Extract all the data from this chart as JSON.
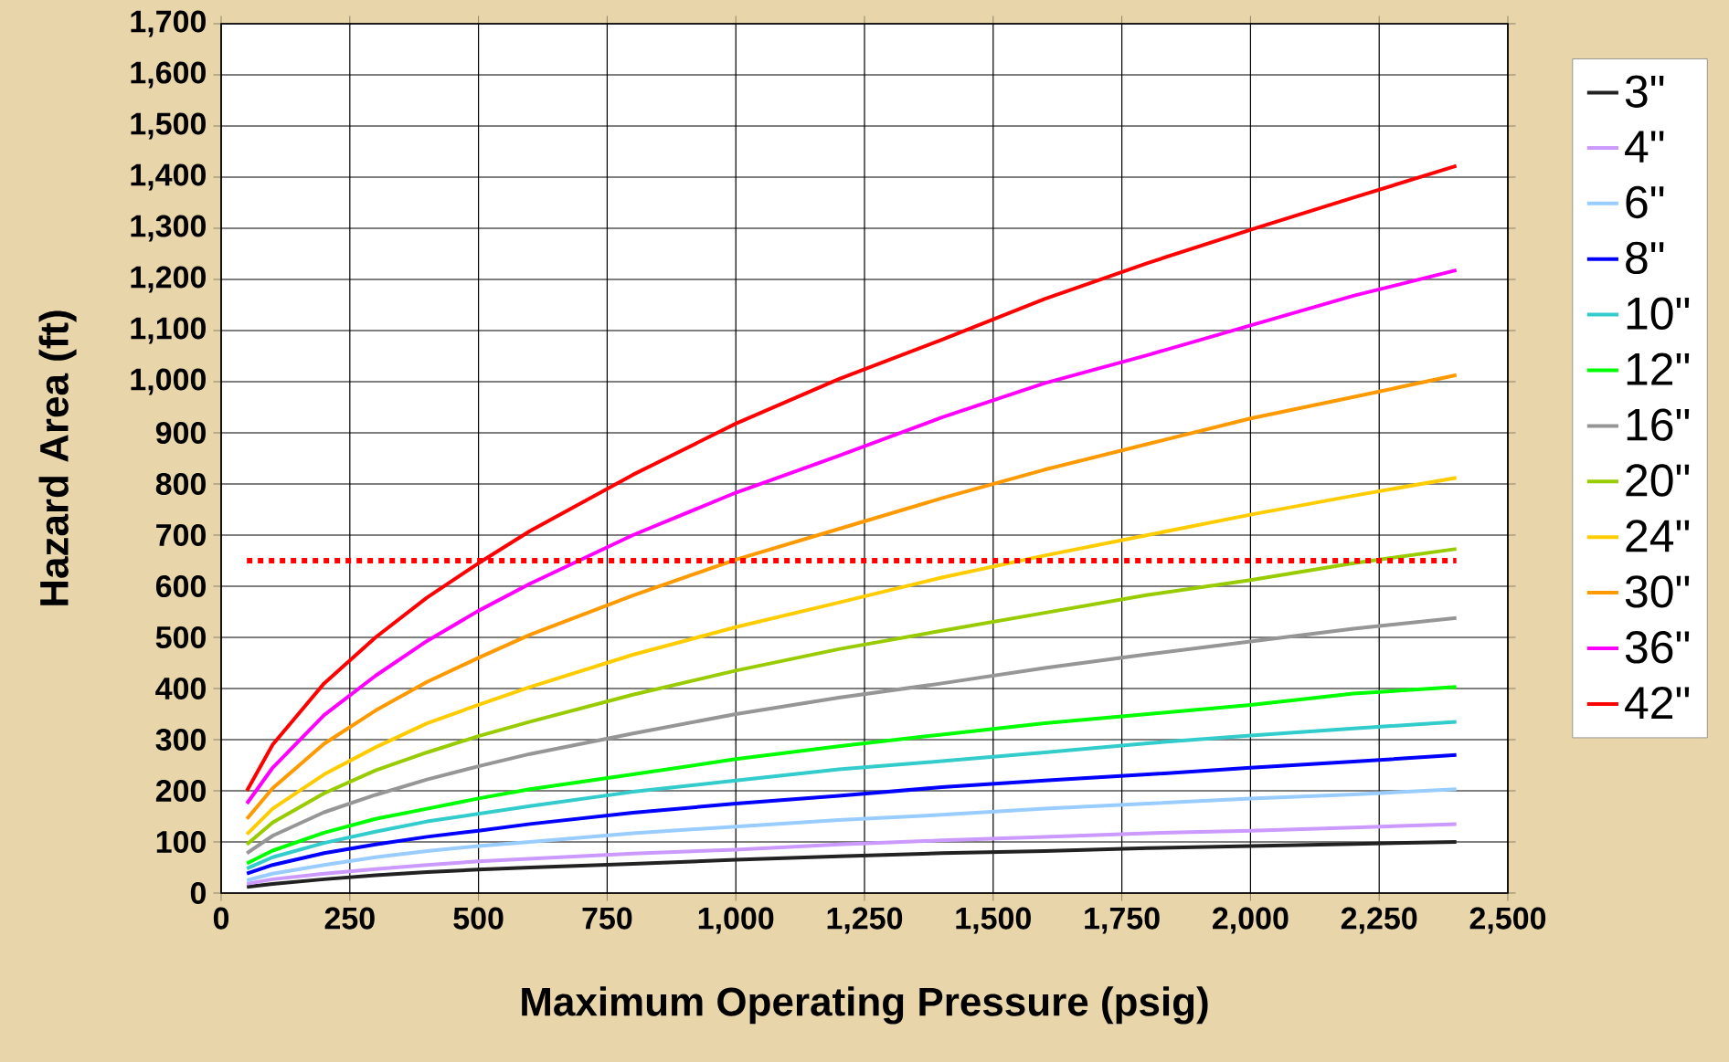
{
  "chart_data": {
    "type": "line",
    "xlabel": "Maximum Operating Pressure (psig)",
    "ylabel": "Hazard Area (ft)",
    "x": [
      50,
      100,
      200,
      300,
      400,
      500,
      600,
      800,
      1000,
      1200,
      1400,
      1600,
      1800,
      2000,
      2200,
      2400
    ],
    "xlim": [
      0,
      2500
    ],
    "ylim": [
      0,
      1700
    ],
    "xticks": [
      0,
      250,
      500,
      750,
      {
        "value": 1000,
        "label": "1,000"
      },
      {
        "value": 1250,
        "label": "1,250"
      },
      {
        "value": 1500,
        "label": "1,500"
      },
      {
        "value": 1750,
        "label": "1,750"
      },
      {
        "value": 2000,
        "label": "2,000"
      },
      {
        "value": 2250,
        "label": "2,250"
      },
      {
        "value": 2500,
        "label": "2,500"
      }
    ],
    "yticks": [
      0,
      100,
      200,
      300,
      400,
      500,
      600,
      700,
      800,
      900,
      {
        "value": 1000,
        "label": "1,000"
      },
      {
        "value": 1100,
        "label": "1,100"
      },
      {
        "value": 1200,
        "label": "1,200"
      },
      {
        "value": 1300,
        "label": "1,300"
      },
      {
        "value": 1400,
        "label": "1,400"
      },
      {
        "value": 1500,
        "label": "1,500"
      },
      {
        "value": 1600,
        "label": "1,600"
      },
      {
        "value": 1700,
        "label": "1,700"
      }
    ],
    "grid": true,
    "legend": "right",
    "marker": "none",
    "line_style": "solid",
    "ref_lines": [
      {
        "axis": "y",
        "value": 650,
        "color": "#ff0000",
        "line_style": "dotted"
      }
    ],
    "series": [
      {
        "name": "3\"",
        "color": "#222222",
        "values": [
          12,
          18,
          27,
          35,
          41,
          46,
          50,
          57,
          65,
          72,
          78,
          82,
          88,
          92,
          96,
          100
        ]
      },
      {
        "name": "4\"",
        "color": "#cc99ff",
        "values": [
          18,
          27,
          38,
          47,
          55,
          62,
          67,
          77,
          85,
          95,
          103,
          110,
          117,
          122,
          128,
          135
        ]
      },
      {
        "name": "6\"",
        "color": "#99ccff",
        "values": [
          25,
          38,
          55,
          70,
          82,
          92,
          100,
          117,
          130,
          143,
          153,
          165,
          175,
          185,
          193,
          203
        ]
      },
      {
        "name": "8\"",
        "color": "#0000ff",
        "values": [
          38,
          55,
          78,
          95,
          110,
          122,
          135,
          157,
          175,
          190,
          207,
          220,
          232,
          245,
          257,
          270
        ]
      },
      {
        "name": "10\"",
        "color": "#33cccc",
        "values": [
          48,
          70,
          98,
          120,
          140,
          155,
          170,
          198,
          220,
          242,
          258,
          275,
          293,
          308,
          322,
          335
        ]
      },
      {
        "name": "12\"",
        "color": "#00ff00",
        "values": [
          58,
          83,
          118,
          145,
          165,
          185,
          203,
          232,
          262,
          287,
          310,
          332,
          350,
          368,
          390,
          403
        ]
      },
      {
        "name": "16\"",
        "color": "#969696",
        "values": [
          78,
          112,
          158,
          192,
          222,
          248,
          272,
          312,
          350,
          382,
          410,
          440,
          467,
          492,
          517,
          538
        ]
      },
      {
        "name": "20\"",
        "color": "#99cc00",
        "values": [
          95,
          138,
          195,
          240,
          275,
          307,
          335,
          388,
          435,
          477,
          513,
          548,
          583,
          612,
          645,
          673
        ]
      },
      {
        "name": "24\"",
        "color": "#ffcc00",
        "values": [
          115,
          165,
          232,
          285,
          332,
          368,
          403,
          466,
          520,
          568,
          617,
          660,
          700,
          740,
          777,
          812
        ]
      },
      {
        "name": "30\"",
        "color": "#ff9900",
        "values": [
          145,
          205,
          292,
          357,
          413,
          460,
          505,
          582,
          652,
          712,
          772,
          828,
          878,
          928,
          970,
          1013
        ]
      },
      {
        "name": "36\"",
        "color": "#ff00ff",
        "values": [
          175,
          245,
          348,
          425,
          493,
          552,
          605,
          700,
          783,
          855,
          930,
          997,
          1052,
          1110,
          1168,
          1218
        ]
      },
      {
        "name": "42\"",
        "color": "#ff0000",
        "values": [
          200,
          290,
          410,
          500,
          578,
          645,
          708,
          818,
          918,
          1005,
          1082,
          1162,
          1232,
          1297,
          1360,
          1422
        ]
      }
    ]
  }
}
